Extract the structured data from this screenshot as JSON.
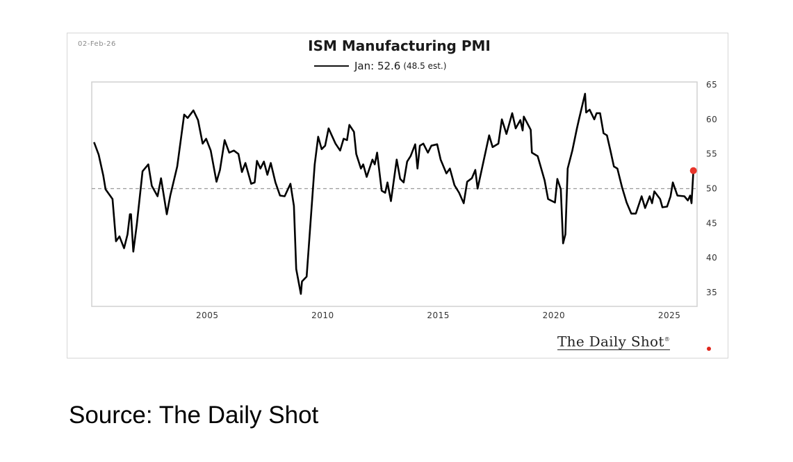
{
  "date_stamp": "02-Feb-26",
  "source_text": "Source: The Daily Shot",
  "logo_text": "The Daily Shot",
  "logo_mark": "®",
  "chart_data": {
    "type": "line",
    "title": "ISM Manufacturing PMI",
    "legend": {
      "label": "Jan: 52.6",
      "note": "(48.5 est.)",
      "placement": "top-center"
    },
    "xlabel": "",
    "ylabel": "",
    "xlim": [
      2000,
      2026.2
    ],
    "ylim": [
      33,
      65.4
    ],
    "x_ticks": [
      2005,
      2010,
      2015,
      2020,
      2025
    ],
    "y_ticks": [
      35,
      40,
      45,
      50,
      55,
      60,
      65
    ],
    "y_axis_side": "right",
    "reference_line": {
      "y": 50,
      "style": "dashed",
      "color": "#9a9a9a"
    },
    "grid": false,
    "line_color": "#000000",
    "last_point_color": "#e8352b",
    "series": [
      {
        "x": [
          2000.1,
          2000.3,
          2000.5,
          2000.6,
          2000.9,
          2001.05,
          2001.2,
          2001.4,
          2001.55,
          2001.65,
          2001.7,
          2001.8,
          2001.95,
          2002.2,
          2002.45,
          2002.6,
          2002.85,
          2003.0,
          2003.25,
          2003.4,
          2003.7,
          2004.0,
          2004.15,
          2004.4,
          2004.6,
          2004.8,
          2004.95,
          2005.15,
          2005.4,
          2005.55,
          2005.75,
          2005.95,
          2006.15,
          2006.35,
          2006.5,
          2006.65,
          2006.9,
          2007.05,
          2007.15,
          2007.3,
          2007.45,
          2007.6,
          2007.75,
          2007.95,
          2008.15,
          2008.35,
          2008.6,
          2008.75,
          2008.85,
          2009.05,
          2009.1,
          2009.3,
          2009.65,
          2009.8,
          2009.95,
          2010.1,
          2010.25,
          2010.55,
          2010.75,
          2010.9,
          2011.05,
          2011.15,
          2011.35,
          2011.45,
          2011.65,
          2011.75,
          2011.9,
          2012.15,
          2012.25,
          2012.35,
          2012.55,
          2012.7,
          2012.8,
          2012.95,
          2013.2,
          2013.35,
          2013.5,
          2013.65,
          2013.8,
          2014.0,
          2014.1,
          2014.2,
          2014.35,
          2014.55,
          2014.7,
          2014.95,
          2015.1,
          2015.35,
          2015.5,
          2015.7,
          2015.9,
          2016.1,
          2016.25,
          2016.45,
          2016.6,
          2016.7,
          2017.2,
          2017.35,
          2017.6,
          2017.75,
          2017.95,
          2018.2,
          2018.35,
          2018.55,
          2018.65,
          2018.7,
          2019.0,
          2019.05,
          2019.3,
          2019.6,
          2019.75,
          2020.05,
          2020.15,
          2020.3,
          2020.4,
          2020.5,
          2020.6,
          2020.8,
          2021.0,
          2021.1,
          2021.35,
          2021.4,
          2021.55,
          2021.75,
          2021.85,
          2022.0,
          2022.15,
          2022.3,
          2022.45,
          2022.6,
          2022.75,
          2022.95,
          2023.15,
          2023.35,
          2023.55,
          2023.8,
          2023.95,
          2024.15,
          2024.25,
          2024.35,
          2024.6,
          2024.7,
          2024.9,
          2025.05,
          2025.15,
          2025.35,
          2025.65,
          2025.8,
          2025.9,
          2025.96,
          2026.04
        ],
        "y": [
          56.7,
          54.9,
          51.9,
          49.9,
          48.5,
          42.4,
          43.1,
          41.4,
          43.4,
          46.3,
          46.3,
          40.9,
          44.8,
          52.5,
          53.5,
          50.4,
          48.9,
          51.5,
          46.3,
          49.0,
          53.2,
          60.7,
          60.2,
          61.3,
          59.9,
          56.5,
          57.2,
          55.5,
          51.0,
          52.7,
          57.0,
          55.2,
          55.5,
          55.0,
          52.4,
          53.7,
          50.7,
          50.9,
          54.0,
          52.9,
          53.9,
          52.0,
          53.7,
          50.9,
          49.0,
          48.9,
          50.7,
          47.5,
          38.4,
          34.8,
          36.6,
          37.3,
          53.5,
          57.5,
          55.7,
          56.2,
          58.7,
          56.5,
          55.5,
          57.2,
          57.0,
          59.2,
          58.2,
          55.0,
          52.9,
          53.5,
          51.7,
          54.2,
          53.5,
          55.2,
          49.7,
          49.4,
          50.9,
          48.2,
          54.2,
          51.4,
          50.9,
          53.9,
          54.7,
          56.4,
          52.9,
          56.2,
          56.5,
          55.2,
          56.2,
          56.4,
          54.2,
          52.2,
          52.9,
          50.5,
          49.4,
          47.9,
          51.0,
          51.5,
          52.7,
          50.0,
          57.7,
          56.0,
          56.5,
          60.0,
          57.9,
          60.9,
          58.7,
          59.9,
          58.4,
          60.4,
          58.5,
          55.2,
          54.7,
          51.2,
          48.5,
          48.0,
          51.4,
          49.9,
          42.1,
          43.4,
          52.9,
          55.5,
          58.7,
          60.2,
          63.7,
          61.0,
          61.4,
          60.0,
          60.9,
          60.9,
          58.0,
          57.7,
          55.5,
          53.2,
          52.9,
          50.2,
          48.0,
          46.4,
          46.4,
          48.9,
          47.2,
          48.9,
          47.9,
          49.6,
          48.5,
          47.3,
          47.4,
          48.9,
          50.9,
          49.0,
          48.9,
          48.3,
          49.0,
          47.9,
          52.6
        ]
      }
    ]
  }
}
